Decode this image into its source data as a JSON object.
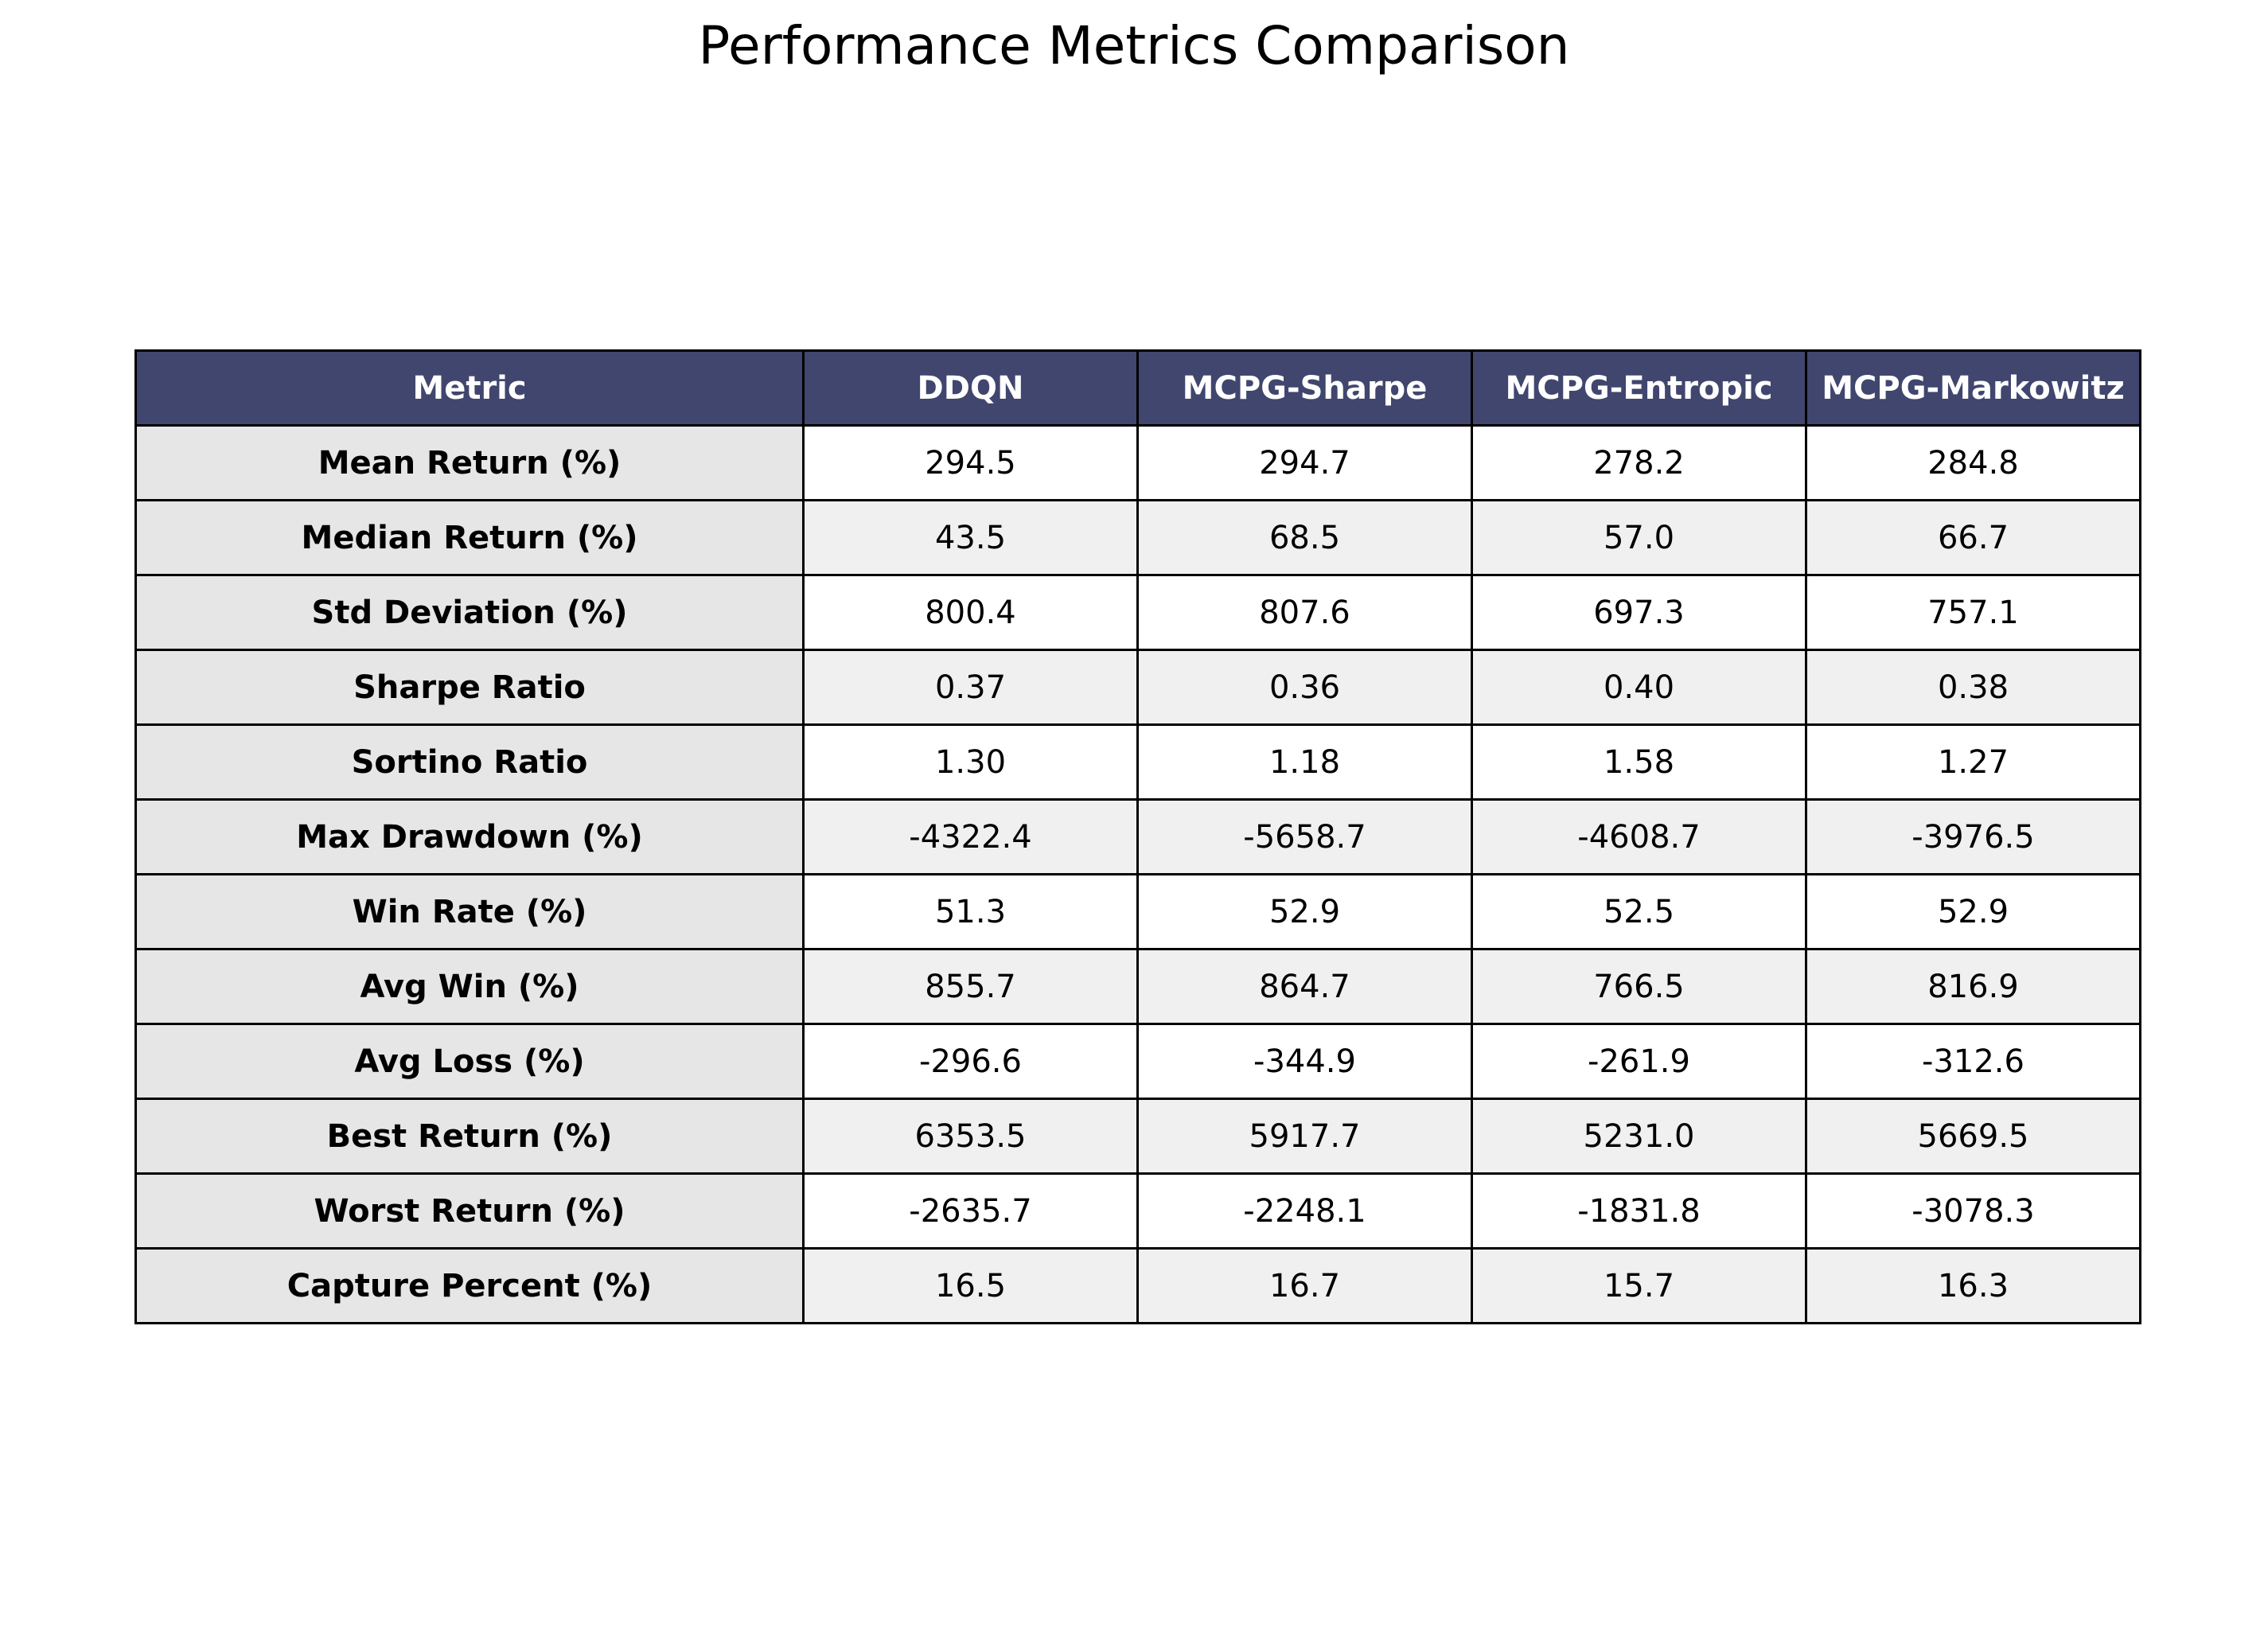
{
  "chart_data": {
    "type": "table",
    "title": "Performance Metrics Comparison",
    "columns": [
      "Metric",
      "DDQN",
      "MCPG-Sharpe",
      "MCPG-Entropic",
      "MCPG-Markowitz"
    ],
    "rows": [
      [
        "Mean Return (%)",
        "294.5",
        "294.7",
        "278.2",
        "284.8"
      ],
      [
        "Median Return (%)",
        "43.5",
        "68.5",
        "57.0",
        "66.7"
      ],
      [
        "Std Deviation (%)",
        "800.4",
        "807.6",
        "697.3",
        "757.1"
      ],
      [
        "Sharpe Ratio",
        "0.37",
        "0.36",
        "0.40",
        "0.38"
      ],
      [
        "Sortino Ratio",
        "1.30",
        "1.18",
        "1.58",
        "1.27"
      ],
      [
        "Max Drawdown (%)",
        "-4322.4",
        "-5658.7",
        "-4608.7",
        "-3976.5"
      ],
      [
        "Win Rate (%)",
        "51.3",
        "52.9",
        "52.5",
        "52.9"
      ],
      [
        "Avg Win (%)",
        "855.7",
        "864.7",
        "766.5",
        "816.9"
      ],
      [
        "Avg Loss (%)",
        "-296.6",
        "-344.9",
        "-261.9",
        "-312.6"
      ],
      [
        "Best Return (%)",
        "6353.5",
        "5917.7",
        "5231.0",
        "5669.5"
      ],
      [
        "Worst Return (%)",
        "-2635.7",
        "-2248.1",
        "-1831.8",
        "-3078.3"
      ],
      [
        "Capture Percent (%)",
        "16.5",
        "16.7",
        "15.7",
        "16.3"
      ]
    ]
  },
  "colors": {
    "header_bg": "#40466e",
    "header_text": "#ffffff",
    "metric_col_bg": "#e6e6e6",
    "row_bg_odd": "#ffffff",
    "row_bg_even": "#f0f0f0",
    "border": "#000000"
  }
}
